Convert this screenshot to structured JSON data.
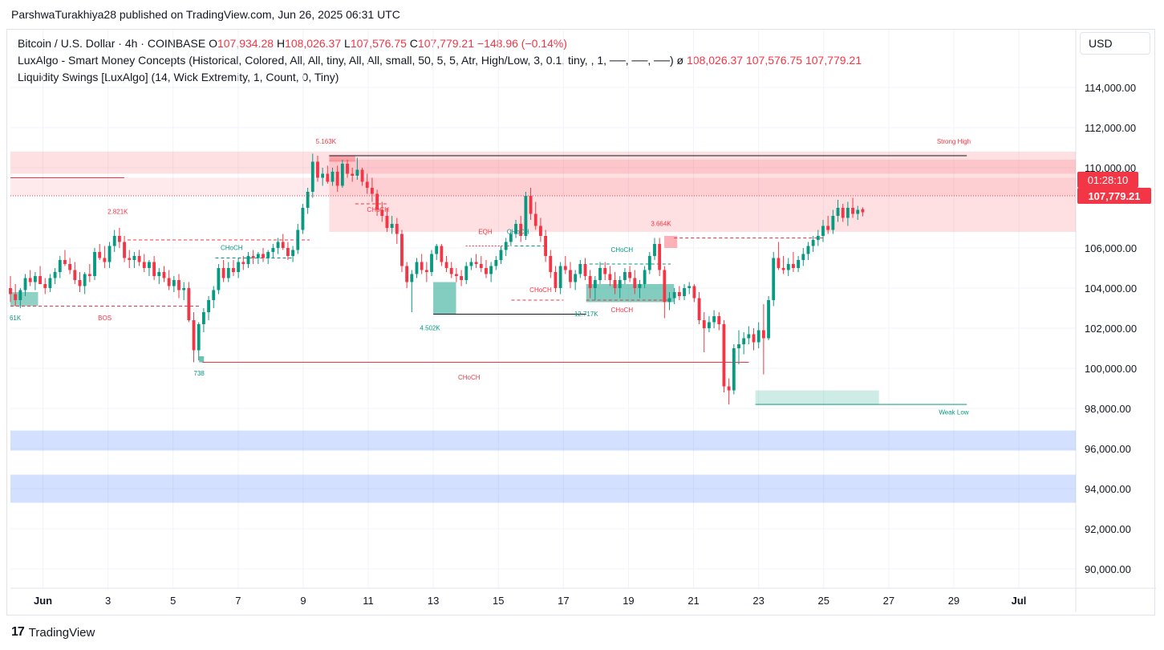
{
  "header": {
    "credit": "ParshwaTurakhiya28 published on TradingView.com, Jun 26, 2025 06:31 UTC"
  },
  "legend": {
    "symbol": "Bitcoin / U.S. Dollar · 4h · COINBASE",
    "o_label": "O",
    "o_value": "107,934.28",
    "h_label": "H",
    "h_value": "108,026.37",
    "l_label": "L",
    "l_value": "107,576.75",
    "c_label": "C",
    "c_value": "107,779.21",
    "change": "−148.96 (−0.14%)",
    "indicator1": "LuxAlgo - Smart Money Concepts (Historical, Colored, All, All, tiny, All, All, small, 50, 5, 5, Atr, High/Low, 3, 0.1, tiny, , 1, ──, ──, ──)",
    "indicator1_glyph": "ø",
    "indicator1_values": [
      "108,026.37",
      "107,576.75",
      "107,779.21"
    ],
    "indicator2": "Liquidity Swings [LuxAlgo] (14, Wick Extremity, 1, Count, 0, Tiny)"
  },
  "currency": "USD",
  "countdown": "01:28:10",
  "last_price": "107,779.21",
  "footer": {
    "logo_mark": "17",
    "logo_text": "TradingView"
  },
  "colors": {
    "up": "#089981",
    "down": "#f23645",
    "zone_red": "#f7525f",
    "zone_blue": "#2962ff",
    "zone_green": "#089981"
  },
  "chart_data": {
    "type": "candlestick",
    "interval": "4h",
    "y_axis": {
      "ticks": [
        "114,000.00",
        "112,000.00",
        "110,000.00",
        "106,000.00",
        "104,000.00",
        "102,000.00",
        "100,000.00",
        "98,000.00",
        "96,000.00",
        "94,000.00",
        "92,000.00",
        "90,000.00"
      ],
      "range": [
        88000,
        115500
      ]
    },
    "x_axis": {
      "ticks": [
        "Jun",
        "3",
        "5",
        "7",
        "9",
        "11",
        "13",
        "15",
        "17",
        "19",
        "21",
        "23",
        "25",
        "27",
        "29",
        "Jul"
      ],
      "tick_days": [
        1,
        3,
        5,
        7,
        9,
        11,
        13,
        15,
        17,
        19,
        21,
        23,
        25,
        27,
        29,
        31
      ],
      "range_days": [
        0.0,
        33.0
      ]
    },
    "annotations": [
      {
        "text": "5.163K",
        "day": 9.7,
        "price": 111200,
        "color": "#f23645"
      },
      {
        "text": "Strong High",
        "day": 29.0,
        "price": 111200,
        "color": "#f23645"
      },
      {
        "text": "2.821K",
        "day": 3.3,
        "price": 107700,
        "color": "#f23645"
      },
      {
        "text": "CHoCH",
        "day": 11.3,
        "price": 107800,
        "color": "#f23645"
      },
      {
        "text": "EQH",
        "day": 14.6,
        "price": 106700,
        "color": "#f23645"
      },
      {
        "text": "CHoCH",
        "day": 15.6,
        "price": 106700,
        "color": "#089981"
      },
      {
        "text": "3.664K",
        "day": 20.0,
        "price": 107100,
        "color": "#f23645"
      },
      {
        "text": "CHoCH",
        "day": 6.8,
        "price": 105900,
        "color": "#089981"
      },
      {
        "text": "CHoCH",
        "day": 18.8,
        "price": 105800,
        "color": "#089981"
      },
      {
        "text": "CHoCH",
        "day": 16.3,
        "price": 103800,
        "color": "#f23645"
      },
      {
        "text": "CHoCH",
        "day": 18.8,
        "price": 102800,
        "color": "#f23645"
      },
      {
        "text": "BOS",
        "day": 2.9,
        "price": 102400,
        "color": "#f23645"
      },
      {
        "text": "61K",
        "day": 0.15,
        "price": 102400,
        "color": "#089981"
      },
      {
        "text": "4.502K",
        "day": 12.9,
        "price": 101900,
        "color": "#089981"
      },
      {
        "text": "12.717K",
        "day": 17.7,
        "price": 102600,
        "color": "#089981"
      },
      {
        "text": "738",
        "day": 5.8,
        "price": 99650,
        "color": "#089981"
      },
      {
        "text": "CHoCH",
        "day": 14.1,
        "price": 99450,
        "color": "#f23645",
        "large": true
      },
      {
        "text": "Weak Low",
        "day": 29.0,
        "price": 97700,
        "color": "#089981"
      }
    ],
    "ohlc": [
      [
        104000,
        104600,
        103300,
        103700
      ],
      [
        103700,
        104200,
        103100,
        103400
      ],
      [
        103400,
        104000,
        103000,
        103900
      ],
      [
        103900,
        104700,
        103600,
        104500
      ],
      [
        104500,
        104900,
        104100,
        104300
      ],
      [
        104300,
        104800,
        103900,
        104600
      ],
      [
        104600,
        105100,
        104200,
        104200
      ],
      [
        104200,
        104500,
        103700,
        104000
      ],
      [
        104000,
        104700,
        103800,
        104500
      ],
      [
        104500,
        105000,
        104200,
        104800
      ],
      [
        104800,
        105600,
        104500,
        105400
      ],
      [
        105400,
        105900,
        105100,
        105200
      ],
      [
        105200,
        105500,
        104700,
        104900
      ],
      [
        104900,
        105300,
        104200,
        104400
      ],
      [
        104400,
        104800,
        103800,
        104100
      ],
      [
        104100,
        104800,
        103700,
        104700
      ],
      [
        104700,
        105200,
        104300,
        104600
      ],
      [
        104600,
        106000,
        104400,
        105800
      ],
      [
        105800,
        106200,
        105400,
        105500
      ],
      [
        105500,
        106100,
        105000,
        105300
      ],
      [
        105300,
        106300,
        105000,
        106100
      ],
      [
        106100,
        106900,
        105800,
        106600
      ],
      [
        106600,
        107000,
        106000,
        106300
      ],
      [
        106300,
        106600,
        105300,
        105500
      ],
      [
        105500,
        105900,
        105000,
        105400
      ],
      [
        105400,
        105800,
        105000,
        105600
      ],
      [
        105600,
        105900,
        105100,
        105300
      ],
      [
        105300,
        105700,
        104800,
        105000
      ],
      [
        105000,
        105400,
        104600,
        105300
      ],
      [
        105300,
        105600,
        104400,
        104600
      ],
      [
        104600,
        105000,
        104200,
        104800
      ],
      [
        104800,
        105100,
        104300,
        104500
      ],
      [
        104500,
        104900,
        103900,
        104100
      ],
      [
        104100,
        104600,
        103800,
        104400
      ],
      [
        104400,
        104700,
        103500,
        103900
      ],
      [
        103900,
        104300,
        103400,
        104000
      ],
      [
        104000,
        104300,
        102300,
        102400
      ],
      [
        102400,
        102800,
        100300,
        100900
      ],
      [
        100900,
        102300,
        100400,
        102200
      ],
      [
        102200,
        103000,
        101800,
        102800
      ],
      [
        102800,
        103600,
        102400,
        103400
      ],
      [
        103400,
        104100,
        103000,
        103900
      ],
      [
        103900,
        105200,
        103700,
        105000
      ],
      [
        105000,
        105400,
        104300,
        104500
      ],
      [
        104500,
        105300,
        104300,
        105000
      ],
      [
        105000,
        105400,
        104600,
        104800
      ],
      [
        104800,
        105500,
        104500,
        105300
      ],
      [
        105300,
        105600,
        104900,
        105200
      ],
      [
        105200,
        105800,
        105000,
        105600
      ],
      [
        105600,
        105900,
        105200,
        105500
      ],
      [
        105500,
        105800,
        105200,
        105700
      ],
      [
        105700,
        106000,
        105300,
        105500
      ],
      [
        105500,
        105900,
        105200,
        105800
      ],
      [
        105800,
        106200,
        105500,
        106000
      ],
      [
        106000,
        106500,
        105700,
        106300
      ],
      [
        106300,
        106700,
        105900,
        106000
      ],
      [
        106000,
        106300,
        105400,
        105600
      ],
      [
        105600,
        106100,
        105300,
        105900
      ],
      [
        105900,
        107200,
        105700,
        106900
      ],
      [
        106900,
        108200,
        106700,
        108000
      ],
      [
        108000,
        109000,
        107700,
        108800
      ],
      [
        108800,
        110700,
        108500,
        110300
      ],
      [
        110300,
        110600,
        109300,
        109500
      ],
      [
        109500,
        110000,
        109100,
        109700
      ],
      [
        109700,
        110100,
        109200,
        109300
      ],
      [
        109300,
        110000,
        109100,
        109800
      ],
      [
        109800,
        110100,
        108800,
        109100
      ],
      [
        109100,
        110400,
        109000,
        110200
      ],
      [
        110200,
        110400,
        109500,
        109700
      ],
      [
        109700,
        110000,
        109300,
        109600
      ],
      [
        109600,
        110500,
        109400,
        109900
      ],
      [
        109900,
        110000,
        109100,
        109300
      ],
      [
        109300,
        109700,
        108700,
        109000
      ],
      [
        109000,
        109500,
        108300,
        108700
      ],
      [
        108700,
        108900,
        107600,
        107900
      ],
      [
        107900,
        108300,
        107300,
        107600
      ],
      [
        107600,
        108000,
        106800,
        107000
      ],
      [
        107000,
        107600,
        106700,
        107200
      ],
      [
        107200,
        107500,
        106200,
        106700
      ],
      [
        106700,
        106900,
        104800,
        105100
      ],
      [
        105100,
        105300,
        104000,
        104300
      ],
      [
        104300,
        104900,
        102800,
        104700
      ],
      [
        104700,
        105500,
        104500,
        105300
      ],
      [
        105300,
        105700,
        104700,
        104900
      ],
      [
        104900,
        105300,
        104300,
        104800
      ],
      [
        104800,
        105900,
        104600,
        105700
      ],
      [
        105700,
        106200,
        105400,
        106100
      ],
      [
        106100,
        106200,
        105100,
        105300
      ],
      [
        105300,
        105600,
        104800,
        105000
      ],
      [
        105000,
        105300,
        104500,
        104700
      ],
      [
        104700,
        105000,
        104300,
        104600
      ],
      [
        104600,
        104900,
        104100,
        104400
      ],
      [
        104400,
        105300,
        104200,
        105100
      ],
      [
        105100,
        105500,
        104900,
        105300
      ],
      [
        105300,
        105700,
        105000,
        105200
      ],
      [
        105200,
        105600,
        104800,
        105000
      ],
      [
        105000,
        105400,
        104500,
        104700
      ],
      [
        104700,
        105300,
        104300,
        105100
      ],
      [
        105100,
        105600,
        104900,
        105400
      ],
      [
        105400,
        106100,
        105200,
        105900
      ],
      [
        105900,
        106500,
        105600,
        106300
      ],
      [
        106300,
        106900,
        106100,
        106700
      ],
      [
        106700,
        107400,
        106500,
        107200
      ],
      [
        107200,
        107600,
        106300,
        106600
      ],
      [
        106600,
        108800,
        106400,
        108600
      ],
      [
        108600,
        109000,
        107400,
        107700
      ],
      [
        107700,
        108300,
        106900,
        107100
      ],
      [
        107100,
        107500,
        106300,
        106600
      ],
      [
        106600,
        106900,
        105300,
        105600
      ],
      [
        105600,
        105900,
        104500,
        104800
      ],
      [
        104800,
        105100,
        103800,
        104000
      ],
      [
        104000,
        105300,
        103700,
        105100
      ],
      [
        105100,
        105600,
        104700,
        104900
      ],
      [
        104900,
        105300,
        104000,
        104300
      ],
      [
        104300,
        104900,
        103900,
        104700
      ],
      [
        104700,
        105400,
        104500,
        105200
      ],
      [
        105200,
        105500,
        104400,
        104600
      ],
      [
        104600,
        104900,
        103500,
        104000
      ],
      [
        104000,
        104600,
        103400,
        104400
      ],
      [
        104400,
        105300,
        104200,
        105000
      ],
      [
        105000,
        105300,
        104400,
        104700
      ],
      [
        104700,
        105100,
        104100,
        104400
      ],
      [
        104400,
        104800,
        103700,
        104000
      ],
      [
        104000,
        104600,
        103500,
        104400
      ],
      [
        104400,
        105000,
        104200,
        104800
      ],
      [
        104800,
        105100,
        104300,
        104500
      ],
      [
        104500,
        104900,
        103700,
        104000
      ],
      [
        104000,
        104400,
        103500,
        104200
      ],
      [
        104200,
        105100,
        104000,
        104900
      ],
      [
        104900,
        105800,
        104700,
        105600
      ],
      [
        105600,
        106500,
        105400,
        106200
      ],
      [
        106200,
        106500,
        104600,
        104900
      ],
      [
        104900,
        105100,
        102500,
        103300
      ],
      [
        103300,
        103800,
        102900,
        103500
      ],
      [
        103500,
        104000,
        103200,
        103800
      ],
      [
        103800,
        104100,
        103400,
        103600
      ],
      [
        103600,
        104200,
        103400,
        104000
      ],
      [
        104000,
        104300,
        103700,
        104100
      ],
      [
        104100,
        104200,
        103300,
        103500
      ],
      [
        103500,
        103800,
        102200,
        102400
      ],
      [
        102400,
        102800,
        100800,
        102000
      ],
      [
        102000,
        102600,
        101800,
        102300
      ],
      [
        102300,
        102900,
        102000,
        102600
      ],
      [
        102600,
        102800,
        101900,
        102200
      ],
      [
        102200,
        102400,
        98800,
        99100
      ],
      [
        99100,
        99500,
        98200,
        98900
      ],
      [
        98900,
        101200,
        98700,
        101000
      ],
      [
        101000,
        101900,
        100200,
        101200
      ],
      [
        101200,
        101800,
        100700,
        101500
      ],
      [
        101500,
        102100,
        101200,
        101700
      ],
      [
        101700,
        102000,
        100900,
        101300
      ],
      [
        101300,
        102300,
        101000,
        101900
      ],
      [
        101900,
        103200,
        99700,
        101500
      ],
      [
        101500,
        103600,
        101400,
        103400
      ],
      [
        103400,
        105800,
        103100,
        105500
      ],
      [
        105500,
        106300,
        104900,
        105000
      ],
      [
        105000,
        105600,
        104700,
        104900
      ],
      [
        104900,
        105500,
        104600,
        105200
      ],
      [
        105200,
        105800,
        104800,
        105000
      ],
      [
        105000,
        105600,
        104800,
        105400
      ],
      [
        105400,
        106000,
        105100,
        105700
      ],
      [
        105700,
        106300,
        105400,
        106100
      ],
      [
        106100,
        106600,
        105800,
        106400
      ],
      [
        106400,
        106900,
        106100,
        106600
      ],
      [
        106600,
        107400,
        106300,
        107100
      ],
      [
        107100,
        107600,
        106700,
        106900
      ],
      [
        106900,
        107900,
        106700,
        107600
      ],
      [
        107600,
        108400,
        107300,
        108000
      ],
      [
        108000,
        108200,
        107300,
        107500
      ],
      [
        107500,
        108300,
        107100,
        108000
      ],
      [
        108000,
        108500,
        107500,
        107700
      ],
      [
        107700,
        108100,
        107400,
        107900
      ],
      [
        107934.28,
        108026.37,
        107576.75,
        107779.21
      ]
    ]
  }
}
